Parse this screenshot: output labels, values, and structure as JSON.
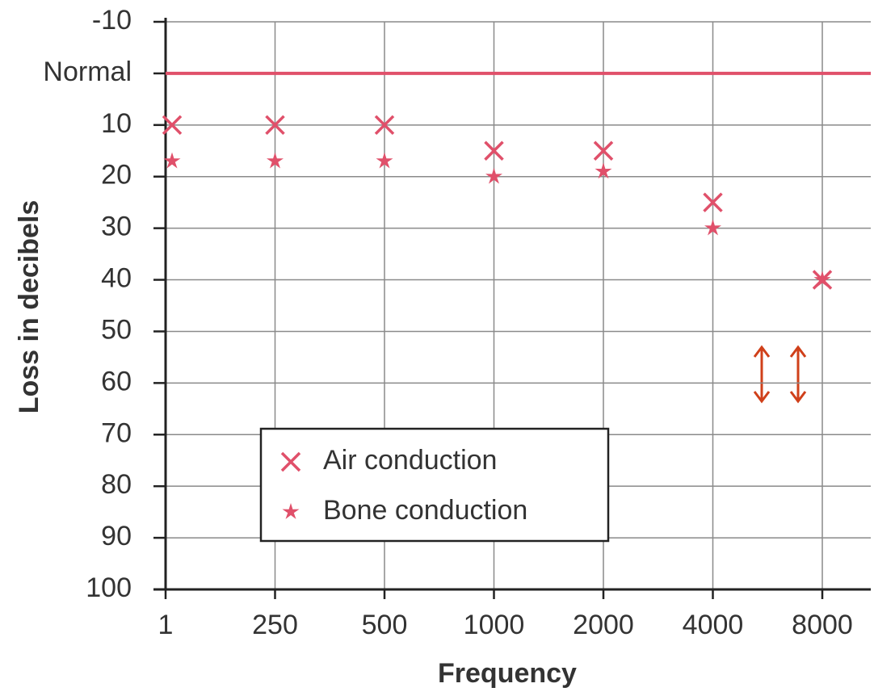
{
  "chart_data": {
    "type": "scatter",
    "y_label": "Loss in decibels",
    "x_label": "Frequency",
    "categories": [
      "1",
      "250",
      "500",
      "1000",
      "2000",
      "4000",
      "8000"
    ],
    "series": [
      {
        "name": "Air conduction",
        "marker": "x",
        "color": "#e0506a",
        "values": [
          10,
          10,
          10,
          15,
          15,
          25,
          40
        ]
      },
      {
        "name": "Bone conduction",
        "marker": "star",
        "color": "#e0506a",
        "values": [
          17,
          17,
          17,
          20,
          19,
          30,
          40
        ]
      }
    ],
    "ylim": [
      -10,
      100
    ],
    "y_inverted": true,
    "yticks": [
      -10,
      {
        "value": 0,
        "label": "Normal"
      },
      10,
      20,
      30,
      40,
      50,
      60,
      70,
      80,
      90,
      100
    ],
    "reference_line": {
      "value": 0,
      "color": "#e0506a"
    },
    "grid": true
  }
}
